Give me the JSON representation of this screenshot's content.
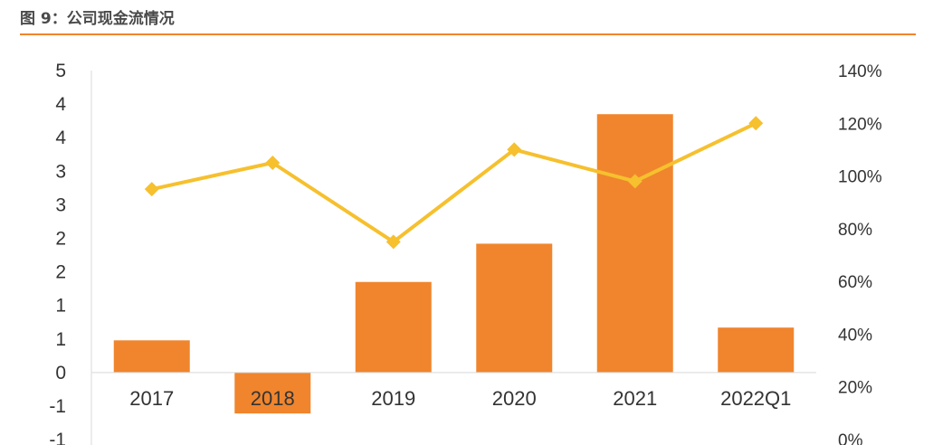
{
  "figure": {
    "title": "图 9：公司现金流情况"
  },
  "colors": {
    "bar": "#f0852d",
    "line": "#f6c02e",
    "rule": "#f0852d"
  },
  "chart_data": {
    "type": "bar",
    "categories": [
      "2017",
      "2018",
      "2019",
      "2020",
      "2021",
      "2022Q1"
    ],
    "series": [
      {
        "type": "bar",
        "axis": "left",
        "values": [
          0.48,
          -0.61,
          1.35,
          1.92,
          3.85,
          0.67
        ]
      },
      {
        "type": "line",
        "axis": "right",
        "values": [
          0.95,
          1.05,
          0.75,
          1.1,
          0.98,
          1.2
        ]
      }
    ],
    "y_left": {
      "ticklabels": [
        "5",
        "4",
        "4",
        "3",
        "3",
        "2",
        "2",
        "1",
        "1",
        "0",
        "-1",
        "-1"
      ],
      "ylim": [
        -1,
        4.5
      ]
    },
    "y_right": {
      "ticklabels": [
        "140%",
        "120%",
        "100%",
        "80%",
        "60%",
        "40%",
        "20%",
        "0%"
      ],
      "ylim": [
        0,
        1.4
      ]
    },
    "legend": "none",
    "grid": false
  }
}
